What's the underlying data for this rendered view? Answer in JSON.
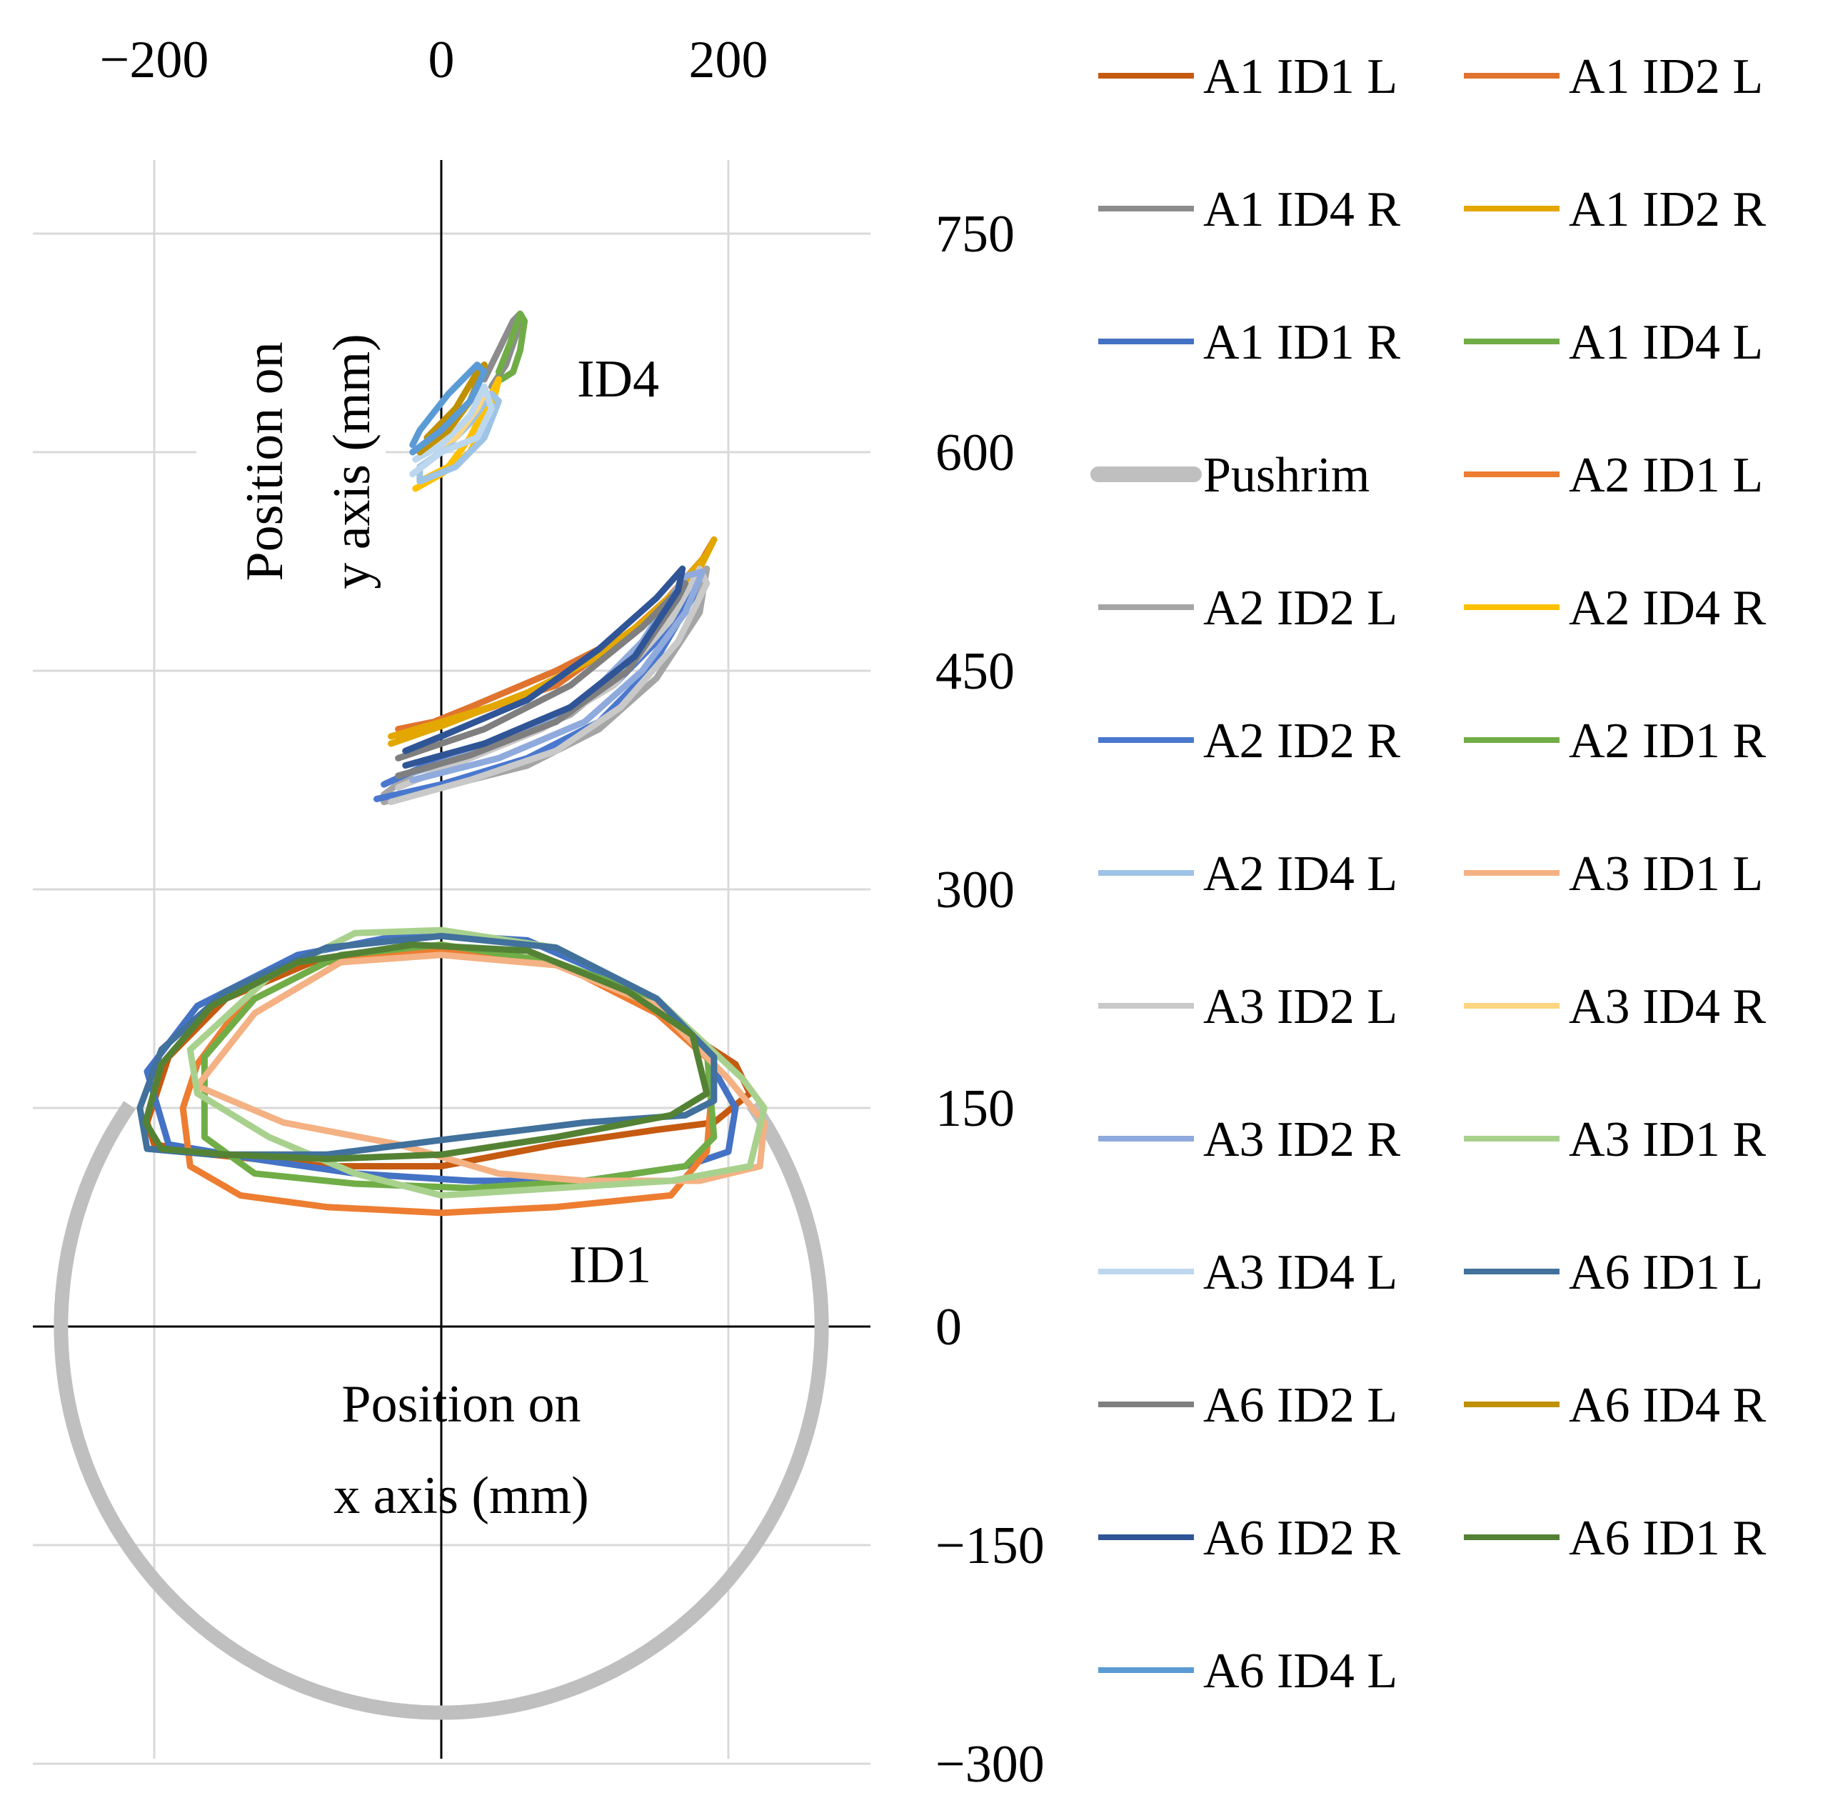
{
  "chart_data": {
    "type": "scatter",
    "xlabel": [
      "Position on",
      "x axis (mm)"
    ],
    "ylabel": [
      "Position on",
      "y axis (mm)"
    ],
    "xlim": [
      -285,
      300
    ],
    "ylim": [
      -300,
      800
    ],
    "xticks": [
      -200,
      0,
      200
    ],
    "xtick_labels": [
      "−200",
      "0",
      "200"
    ],
    "yticks": [
      750,
      600,
      450,
      300,
      150,
      0,
      -150,
      -300
    ],
    "ytick_labels": [
      "750",
      "600",
      "450",
      "300",
      "150",
      "0",
      "−150",
      "−300"
    ],
    "grid": true,
    "legend_placement": "right",
    "annotations": [
      {
        "text": "ID4",
        "x": 128,
        "y": 650
      },
      {
        "text": "ID1",
        "x": 122,
        "y": 42
      }
    ],
    "series": [
      {
        "name": "A1 ID1 L",
        "color": "#C55A11",
        "points": [
          [
            -205,
            140
          ],
          [
            -190,
            185
          ],
          [
            -150,
            225
          ],
          [
            -90,
            250
          ],
          [
            0,
            258
          ],
          [
            80,
            250
          ],
          [
            150,
            215
          ],
          [
            205,
            180
          ],
          [
            215,
            160
          ],
          [
            190,
            140
          ],
          [
            150,
            135
          ],
          [
            80,
            125
          ],
          [
            0,
            110
          ],
          [
            -80,
            110
          ],
          [
            -160,
            118
          ],
          [
            -200,
            125
          ],
          [
            -205,
            140
          ]
        ]
      },
      {
        "name": "A1 ID2 L",
        "color": "#E0742E",
        "points": [
          [
            -30,
            410
          ],
          [
            20,
            420
          ],
          [
            80,
            440
          ],
          [
            130,
            475
          ],
          [
            175,
            515
          ],
          [
            190,
            540
          ],
          [
            185,
            530
          ],
          [
            140,
            480
          ],
          [
            80,
            450
          ],
          [
            20,
            425
          ],
          [
            -30,
            405
          ]
        ]
      },
      {
        "name": "A1 ID4 R",
        "color": "#8C8C8C",
        "points": [
          [
            30,
            650
          ],
          [
            40,
            670
          ],
          [
            50,
            690
          ],
          [
            55,
            695
          ],
          [
            52,
            680
          ],
          [
            45,
            660
          ],
          [
            35,
            645
          ]
        ]
      },
      {
        "name": "A1 ID2 R",
        "color": "#E3A700",
        "points": [
          [
            -35,
            405
          ],
          [
            0,
            415
          ],
          [
            50,
            430
          ],
          [
            100,
            455
          ],
          [
            150,
            490
          ],
          [
            185,
            530
          ],
          [
            190,
            540
          ],
          [
            180,
            520
          ],
          [
            120,
            465
          ],
          [
            60,
            435
          ],
          [
            0,
            412
          ],
          [
            -35,
            400
          ]
        ]
      },
      {
        "name": "A1 ID1 R",
        "color": "#4472C4",
        "points": [
          [
            -205,
            175
          ],
          [
            -170,
            220
          ],
          [
            -100,
            255
          ],
          [
            -20,
            270
          ],
          [
            60,
            265
          ],
          [
            130,
            235
          ],
          [
            185,
            185
          ],
          [
            205,
            150
          ],
          [
            200,
            120
          ],
          [
            170,
            110
          ],
          [
            100,
            100
          ],
          [
            20,
            100
          ],
          [
            -60,
            105
          ],
          [
            -130,
            115
          ],
          [
            -190,
            125
          ],
          [
            -205,
            175
          ]
        ]
      },
      {
        "name": "A1 ID4 L",
        "color": "#70AD47",
        "points": [
          [
            40,
            655
          ],
          [
            48,
            675
          ],
          [
            55,
            695
          ],
          [
            58,
            690
          ],
          [
            55,
            670
          ],
          [
            50,
            655
          ],
          [
            42,
            650
          ]
        ]
      },
      {
        "name": "Pushrim",
        "color": "#BFBFBF",
        "pushrim": true,
        "center": [
          0,
          0
        ],
        "radius": 265,
        "arc_deg": [
          145,
          395
        ]
      },
      {
        "name": "A2 ID1 L",
        "color": "#ED7D31",
        "points": [
          [
            -170,
            180
          ],
          [
            -140,
            220
          ],
          [
            -80,
            250
          ],
          [
            0,
            258
          ],
          [
            80,
            250
          ],
          [
            150,
            215
          ],
          [
            190,
            180
          ],
          [
            185,
            120
          ],
          [
            160,
            90
          ],
          [
            80,
            82
          ],
          [
            0,
            78
          ],
          [
            -80,
            82
          ],
          [
            -140,
            90
          ],
          [
            -175,
            110
          ],
          [
            -180,
            150
          ],
          [
            -170,
            180
          ]
        ]
      },
      {
        "name": "A2 ID2 L",
        "color": "#A5A5A5",
        "points": [
          [
            -40,
            360
          ],
          [
            0,
            370
          ],
          [
            60,
            385
          ],
          [
            110,
            410
          ],
          [
            150,
            445
          ],
          [
            180,
            490
          ],
          [
            185,
            520
          ],
          [
            175,
            500
          ],
          [
            140,
            460
          ],
          [
            90,
            420
          ],
          [
            30,
            395
          ],
          [
            -20,
            380
          ],
          [
            -40,
            365
          ]
        ]
      },
      {
        "name": "A2 ID4 R",
        "color": "#FFC000",
        "points": [
          [
            -18,
            575
          ],
          [
            0,
            585
          ],
          [
            20,
            600
          ],
          [
            35,
            630
          ],
          [
            40,
            650
          ],
          [
            35,
            640
          ],
          [
            20,
            610
          ],
          [
            5,
            590
          ],
          [
            -15,
            580
          ]
        ]
      },
      {
        "name": "A2 ID2 R",
        "color": "#4A78CF",
        "points": [
          [
            -45,
            362
          ],
          [
            0,
            372
          ],
          [
            60,
            390
          ],
          [
            110,
            415
          ],
          [
            145,
            450
          ],
          [
            175,
            500
          ],
          [
            180,
            515
          ],
          [
            160,
            480
          ],
          [
            120,
            440
          ],
          [
            60,
            410
          ],
          [
            0,
            390
          ],
          [
            -40,
            372
          ]
        ]
      },
      {
        "name": "A2 ID1 R",
        "color": "#70AD47",
        "points": [
          [
            -165,
            185
          ],
          [
            -130,
            225
          ],
          [
            -70,
            255
          ],
          [
            0,
            262
          ],
          [
            80,
            250
          ],
          [
            150,
            225
          ],
          [
            185,
            190
          ],
          [
            190,
            130
          ],
          [
            170,
            110
          ],
          [
            100,
            100
          ],
          [
            20,
            95
          ],
          [
            -60,
            98
          ],
          [
            -130,
            105
          ],
          [
            -165,
            130
          ],
          [
            -165,
            185
          ]
        ]
      },
      {
        "name": "A2 ID4 L",
        "color": "#9DC3E6",
        "points": [
          [
            -15,
            580
          ],
          [
            10,
            590
          ],
          [
            30,
            610
          ],
          [
            40,
            635
          ],
          [
            35,
            640
          ],
          [
            20,
            620
          ],
          [
            0,
            600
          ],
          [
            -15,
            590
          ],
          [
            -15,
            580
          ]
        ]
      },
      {
        "name": "A3 ID1 L",
        "color": "#F4B183",
        "points": [
          [
            -170,
            165
          ],
          [
            -130,
            215
          ],
          [
            -70,
            250
          ],
          [
            0,
            255
          ],
          [
            80,
            248
          ],
          [
            150,
            220
          ],
          [
            200,
            170
          ],
          [
            225,
            140
          ],
          [
            222,
            110
          ],
          [
            180,
            100
          ],
          [
            100,
            100
          ],
          [
            40,
            105
          ],
          [
            -30,
            125
          ],
          [
            -110,
            140
          ],
          [
            -170,
            165
          ]
        ]
      },
      {
        "name": "A3 ID2 L",
        "color": "#C9C9C9",
        "points": [
          [
            -35,
            360
          ],
          [
            20,
            375
          ],
          [
            80,
            395
          ],
          [
            125,
            425
          ],
          [
            165,
            470
          ],
          [
            185,
            510
          ],
          [
            180,
            520
          ],
          [
            160,
            485
          ],
          [
            120,
            440
          ],
          [
            70,
            410
          ],
          [
            20,
            390
          ],
          [
            -30,
            370
          ]
        ]
      },
      {
        "name": "A3 ID4 R",
        "color": "#FFD580",
        "points": [
          [
            -10,
            600
          ],
          [
            10,
            610
          ],
          [
            25,
            630
          ],
          [
            30,
            640
          ],
          [
            20,
            625
          ],
          [
            5,
            610
          ],
          [
            -10,
            605
          ]
        ]
      },
      {
        "name": "A3 ID2 R",
        "color": "#8FAADC",
        "points": [
          [
            -20,
            375
          ],
          [
            40,
            390
          ],
          [
            100,
            415
          ],
          [
            140,
            450
          ],
          [
            170,
            490
          ],
          [
            182,
            518
          ],
          [
            170,
            515
          ],
          [
            140,
            470
          ],
          [
            100,
            430
          ],
          [
            40,
            400
          ],
          [
            -20,
            380
          ]
        ]
      },
      {
        "name": "A3 ID1 R",
        "color": "#A9D18E",
        "points": [
          [
            -175,
            190
          ],
          [
            -120,
            240
          ],
          [
            -60,
            270
          ],
          [
            0,
            272
          ],
          [
            80,
            260
          ],
          [
            150,
            225
          ],
          [
            210,
            170
          ],
          [
            225,
            150
          ],
          [
            215,
            110
          ],
          [
            160,
            100
          ],
          [
            80,
            95
          ],
          [
            0,
            90
          ],
          [
            -60,
            105
          ],
          [
            -120,
            130
          ],
          [
            -170,
            160
          ],
          [
            -175,
            190
          ]
        ]
      },
      {
        "name": "A3 ID4 L",
        "color": "#BDD7EE",
        "points": [
          [
            -20,
            585
          ],
          [
            0,
            600
          ],
          [
            25,
            610
          ],
          [
            35,
            630
          ],
          [
            30,
            645
          ],
          [
            20,
            625
          ],
          [
            0,
            605
          ],
          [
            -18,
            595
          ]
        ]
      },
      {
        "name": "A6 ID1 L",
        "color": "#41719C",
        "points": [
          [
            -210,
            150
          ],
          [
            -195,
            190
          ],
          [
            -150,
            230
          ],
          [
            -80,
            260
          ],
          [
            0,
            268
          ],
          [
            80,
            260
          ],
          [
            150,
            225
          ],
          [
            190,
            185
          ],
          [
            190,
            155
          ],
          [
            170,
            145
          ],
          [
            100,
            140
          ],
          [
            0,
            128
          ],
          [
            -80,
            118
          ],
          [
            -160,
            118
          ],
          [
            -205,
            122
          ],
          [
            -210,
            150
          ]
        ]
      },
      {
        "name": "A6 ID2 L",
        "color": "#7F7F7F",
        "points": [
          [
            -30,
            378
          ],
          [
            20,
            392
          ],
          [
            80,
            415
          ],
          [
            130,
            450
          ],
          [
            165,
            500
          ],
          [
            170,
            510
          ],
          [
            140,
            480
          ],
          [
            90,
            440
          ],
          [
            30,
            410
          ],
          [
            -30,
            390
          ]
        ]
      },
      {
        "name": "A6 ID4 R",
        "color": "#BF9000",
        "points": [
          [
            -15,
            600
          ],
          [
            5,
            615
          ],
          [
            20,
            635
          ],
          [
            30,
            660
          ],
          [
            25,
            655
          ],
          [
            10,
            630
          ],
          [
            -10,
            610
          ]
        ]
      },
      {
        "name": "A6 ID2 R",
        "color": "#2F5597",
        "points": [
          [
            -25,
            385
          ],
          [
            30,
            400
          ],
          [
            90,
            425
          ],
          [
            135,
            460
          ],
          [
            165,
            505
          ],
          [
            168,
            520
          ],
          [
            150,
            500
          ],
          [
            110,
            465
          ],
          [
            60,
            430
          ],
          [
            0,
            405
          ],
          [
            -25,
            395
          ]
        ]
      },
      {
        "name": "A6 ID1 R",
        "color": "#548235",
        "points": [
          [
            -206,
            140
          ],
          [
            -195,
            180
          ],
          [
            -160,
            220
          ],
          [
            -100,
            250
          ],
          [
            -20,
            262
          ],
          [
            60,
            258
          ],
          [
            130,
            230
          ],
          [
            175,
            200
          ],
          [
            185,
            160
          ],
          [
            160,
            145
          ],
          [
            80,
            130
          ],
          [
            0,
            118
          ],
          [
            -80,
            115
          ],
          [
            -150,
            118
          ],
          [
            -195,
            122
          ],
          [
            -206,
            140
          ]
        ]
      },
      {
        "name": "A6 ID4 L",
        "color": "#5B9BD5",
        "points": [
          [
            -20,
            600
          ],
          [
            0,
            615
          ],
          [
            20,
            635
          ],
          [
            30,
            655
          ],
          [
            25,
            660
          ],
          [
            5,
            640
          ],
          [
            -15,
            615
          ],
          [
            -20,
            605
          ]
        ]
      }
    ]
  }
}
